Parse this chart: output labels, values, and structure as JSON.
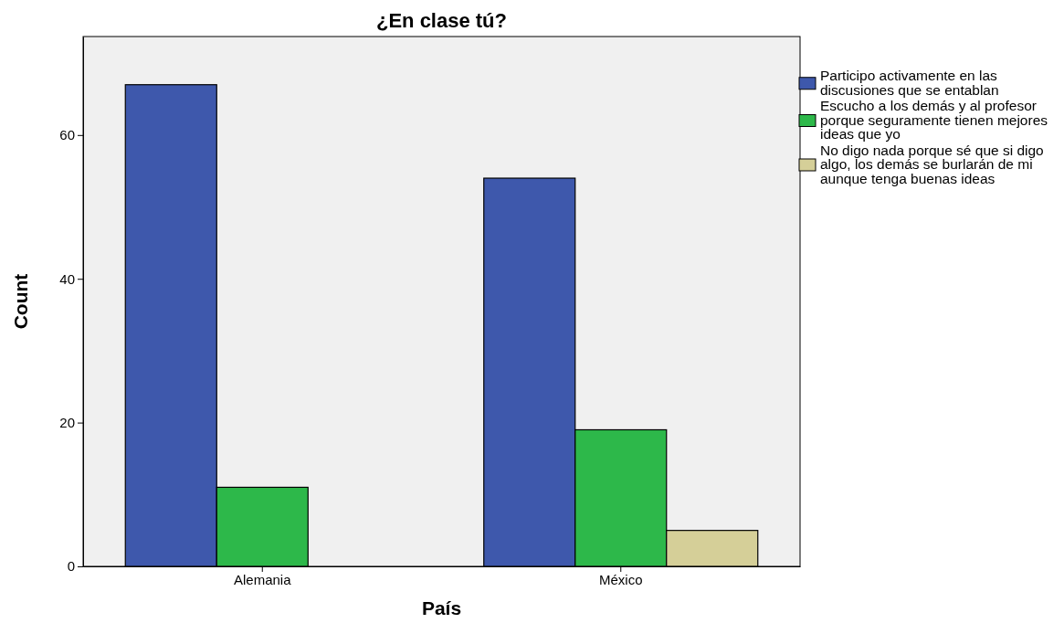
{
  "chart_data": {
    "type": "bar",
    "title": "¿En clase tú?",
    "xlabel": "País",
    "ylabel": "Count",
    "categories": [
      "Alemania",
      "México"
    ],
    "series": [
      {
        "name": "Participo activamente en las discusiones que se entablan",
        "color": "#3e58ac",
        "values": [
          67,
          54
        ]
      },
      {
        "name": "Escucho a los demás y al profesor porque seguramente tienen mejores ideas que yo",
        "color": "#2db84a",
        "values": [
          11,
          19
        ]
      },
      {
        "name": "No digo nada porque sé que si digo algo, los demás se burlarán de mi aunque tenga buenas ideas",
        "color": "#d5cf98",
        "values": [
          null,
          5
        ]
      }
    ],
    "ylim": [
      0,
      73.7
    ],
    "yticks": [
      0,
      20,
      40,
      60
    ],
    "grid": false,
    "legend": "right"
  }
}
